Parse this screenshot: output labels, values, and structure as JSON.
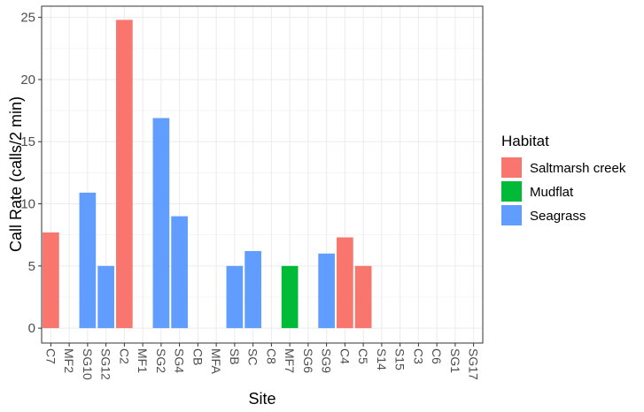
{
  "chart_data": {
    "type": "bar",
    "title": "",
    "xlabel": "Site",
    "ylabel": "Call Rate (calls/2 min)",
    "ylim": [
      -1.2,
      25.9
    ],
    "yticks": [
      0,
      5,
      10,
      15,
      20,
      25
    ],
    "grid": true,
    "legend_position": "right",
    "legend_title": "Habitat",
    "legend": [
      {
        "name": "Saltmarsh creek",
        "color": "#F8766D"
      },
      {
        "name": "Mudflat",
        "color": "#00BA38"
      },
      {
        "name": "Seagrass",
        "color": "#619CFF"
      }
    ],
    "categories": [
      "C7",
      "MF2",
      "SG10",
      "SG12",
      "C2",
      "MF1",
      "SG2",
      "SG4",
      "CB",
      "MFA",
      "SB",
      "SC",
      "C8",
      "MF7",
      "SG6",
      "SG9",
      "C4",
      "C5",
      "S14",
      "S15",
      "C3",
      "C6",
      "SG1",
      "SG17"
    ],
    "values": [
      7.7,
      null,
      10.9,
      5.0,
      24.8,
      null,
      16.9,
      9.0,
      null,
      null,
      5.0,
      6.2,
      null,
      5.0,
      null,
      6.0,
      7.3,
      5.0,
      null,
      null,
      null,
      null,
      null,
      null
    ],
    "habitat": [
      "Saltmarsh creek",
      null,
      "Seagrass",
      "Seagrass",
      "Saltmarsh creek",
      null,
      "Seagrass",
      "Seagrass",
      null,
      null,
      "Seagrass",
      "Seagrass",
      null,
      "Mudflat",
      null,
      "Seagrass",
      "Saltmarsh creek",
      "Saltmarsh creek",
      null,
      null,
      null,
      null,
      null,
      null
    ]
  }
}
